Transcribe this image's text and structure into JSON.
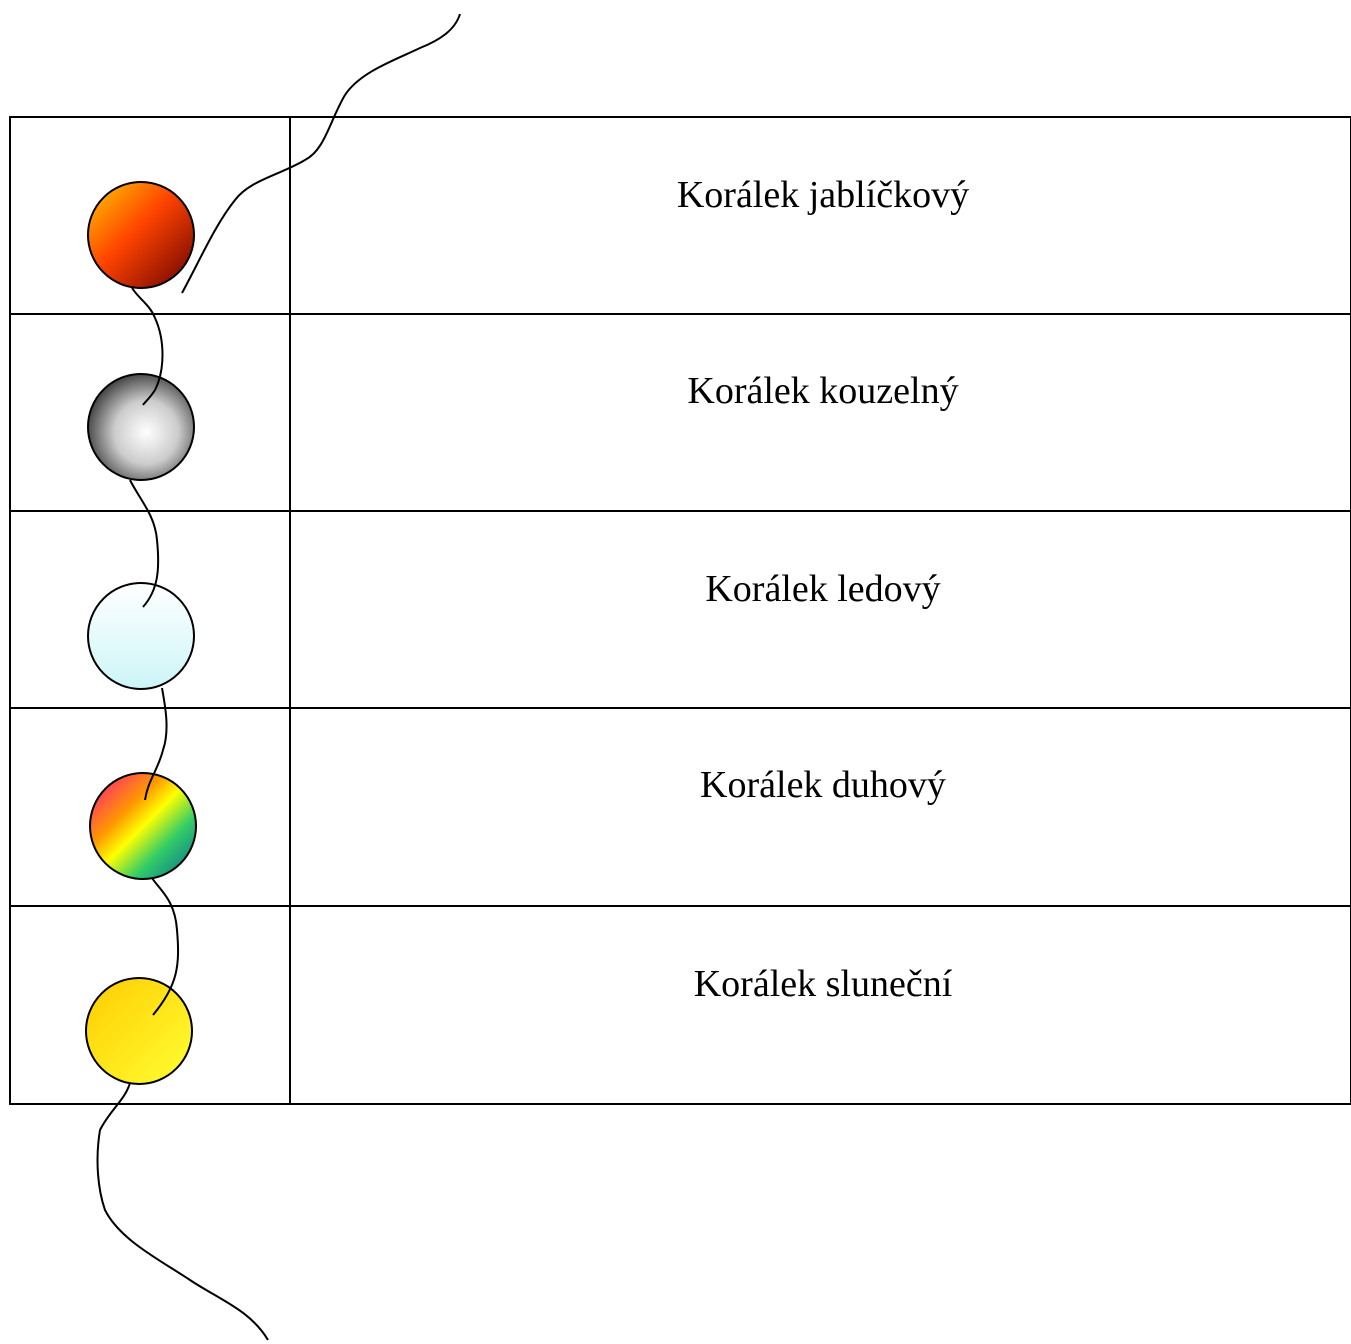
{
  "table": {
    "rows": [
      [
        "Korálek jablíčkový"
      ],
      [
        "Korálek kouzelný"
      ],
      [
        "Korálek ledový"
      ],
      [
        "Korálek duhový"
      ],
      [
        "Korálek sluneční"
      ]
    ]
  }
}
